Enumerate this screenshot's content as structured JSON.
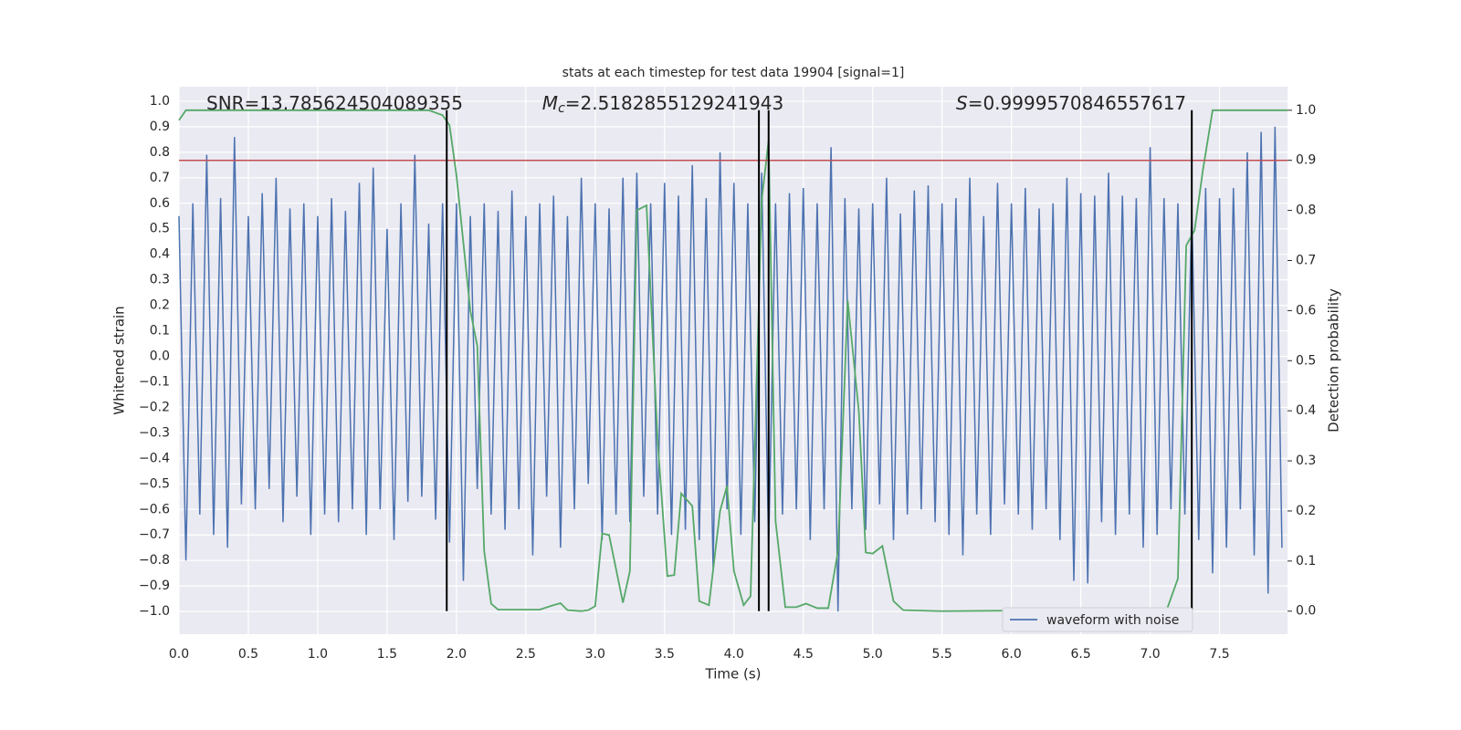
{
  "chart_data": {
    "type": "line",
    "title": "stats at each timestep for test data 19904 [signal=1]",
    "xlabel": "Time (s)",
    "ylabel": "Whitened strain",
    "y2label": "Detection probability",
    "annotations": [
      {
        "text": "SNR=13.785624504089355"
      },
      {
        "symbol": "M",
        "subscript": "c",
        "text": "=2.5182855129241943"
      },
      {
        "symbol": "S",
        "text": "=0.9999570846557617"
      }
    ],
    "xlim": [
      0,
      7.99
    ],
    "ylim": [
      -1.089,
      1.057
    ],
    "y2lim": [
      -0.046,
      1.047
    ],
    "grid": true,
    "legend": "lower right",
    "xticks": [
      {
        "value": 0,
        "label": "0.0"
      },
      {
        "value": 0.5,
        "label": "0.5"
      },
      {
        "value": 1,
        "label": "1.0"
      },
      {
        "value": 1.5,
        "label": "1.5"
      },
      {
        "value": 2,
        "label": "2.0"
      },
      {
        "value": 2.5,
        "label": "2.5"
      },
      {
        "value": 3,
        "label": "3.0"
      },
      {
        "value": 3.5,
        "label": "3.5"
      },
      {
        "value": 4,
        "label": "4.0"
      },
      {
        "value": 4.5,
        "label": "4.5"
      },
      {
        "value": 5,
        "label": "5.0"
      },
      {
        "value": 5.5,
        "label": "5.5"
      },
      {
        "value": 6,
        "label": "6.0"
      },
      {
        "value": 6.5,
        "label": "6.5"
      },
      {
        "value": 7,
        "label": "7.0"
      },
      {
        "value": 7.5,
        "label": "7.5"
      }
    ],
    "yticks": [
      {
        "value": -1,
        "label": "−1.0"
      },
      {
        "value": -0.9,
        "label": "−0.9"
      },
      {
        "value": -0.8,
        "label": "−0.8"
      },
      {
        "value": -0.7,
        "label": "−0.7"
      },
      {
        "value": -0.6,
        "label": "−0.6"
      },
      {
        "value": -0.5,
        "label": "−0.5"
      },
      {
        "value": -0.4,
        "label": "−0.4"
      },
      {
        "value": -0.3,
        "label": "−0.3"
      },
      {
        "value": -0.2,
        "label": "−0.2"
      },
      {
        "value": -0.1,
        "label": "−0.1"
      },
      {
        "value": 0,
        "label": "0.0"
      },
      {
        "value": 0.1,
        "label": "0.1"
      },
      {
        "value": 0.2,
        "label": "0.2"
      },
      {
        "value": 0.3,
        "label": "0.3"
      },
      {
        "value": 0.4,
        "label": "0.4"
      },
      {
        "value": 0.5,
        "label": "0.5"
      },
      {
        "value": 0.6,
        "label": "0.6"
      },
      {
        "value": 0.7,
        "label": "0.7"
      },
      {
        "value": 0.8,
        "label": "0.8"
      },
      {
        "value": 0.9,
        "label": "0.9"
      },
      {
        "value": 1,
        "label": "1.0"
      }
    ],
    "y2ticks": [
      {
        "value": 0,
        "label": "0.0"
      },
      {
        "value": 0.1,
        "label": "0.1"
      },
      {
        "value": 0.2,
        "label": "0.2"
      },
      {
        "value": 0.3,
        "label": "0.3"
      },
      {
        "value": 0.4,
        "label": "0.4"
      },
      {
        "value": 0.5,
        "label": "0.5"
      },
      {
        "value": 0.6,
        "label": "0.6"
      },
      {
        "value": 0.7,
        "label": "0.7"
      },
      {
        "value": 0.8,
        "label": "0.8"
      },
      {
        "value": 0.9,
        "label": "0.9"
      },
      {
        "value": 1,
        "label": "1.0"
      }
    ],
    "series": [
      {
        "name": "waveform with noise",
        "color": "#4c72b0",
        "x": [
          0,
          0.05,
          0.1,
          0.15,
          0.2,
          0.25,
          0.3,
          0.35,
          0.4,
          0.45,
          0.5,
          0.55,
          0.6,
          0.65,
          0.7,
          0.75,
          0.8,
          0.85,
          0.9,
          0.95,
          1,
          1.05,
          1.1,
          1.15,
          1.2,
          1.25,
          1.3,
          1.35,
          1.4,
          1.45,
          1.5,
          1.55,
          1.6,
          1.65,
          1.7,
          1.75,
          1.8,
          1.85,
          1.9,
          1.95,
          2,
          2.05,
          2.1,
          2.15,
          2.2,
          2.25,
          2.3,
          2.35,
          2.4,
          2.45,
          2.5,
          2.55,
          2.6,
          2.65,
          2.7,
          2.75,
          2.8,
          2.85,
          2.9,
          2.95,
          3,
          3.05,
          3.1,
          3.15,
          3.2,
          3.25,
          3.3,
          3.35,
          3.4,
          3.45,
          3.5,
          3.55,
          3.6,
          3.65,
          3.7,
          3.75,
          3.8,
          3.85,
          3.9,
          3.95,
          4,
          4.05,
          4.1,
          4.15,
          4.2,
          4.25,
          4.3,
          4.35,
          4.4,
          4.45,
          4.5,
          4.55,
          4.6,
          4.65,
          4.7,
          4.75,
          4.8,
          4.85,
          4.9,
          4.95,
          5,
          5.05,
          5.1,
          5.15,
          5.2,
          5.25,
          5.3,
          5.35,
          5.4,
          5.45,
          5.5,
          5.55,
          5.6,
          5.65,
          5.7,
          5.75,
          5.8,
          5.85,
          5.9,
          5.95,
          6,
          6.05,
          6.1,
          6.15,
          6.2,
          6.25,
          6.3,
          6.35,
          6.4,
          6.45,
          6.5,
          6.55,
          6.6,
          6.65,
          6.7,
          6.75,
          6.8,
          6.85,
          6.9,
          6.95,
          7,
          7.05,
          7.1,
          7.15,
          7.2,
          7.25,
          7.3,
          7.35,
          7.4,
          7.45,
          7.5,
          7.55,
          7.6,
          7.65,
          7.7,
          7.75,
          7.8,
          7.85,
          7.9,
          7.95
        ],
        "values": [
          0.55,
          -0.8,
          0.6,
          -0.62,
          0.79,
          -0.7,
          0.62,
          -0.75,
          0.86,
          -0.58,
          0.55,
          -0.6,
          0.64,
          -0.52,
          0.7,
          -0.65,
          0.58,
          -0.55,
          0.6,
          -0.7,
          0.55,
          -0.62,
          0.62,
          -0.65,
          0.57,
          -0.6,
          0.68,
          -0.7,
          0.74,
          -0.6,
          0.5,
          -0.72,
          0.6,
          -0.57,
          0.79,
          -0.55,
          0.52,
          -0.64,
          0.6,
          -0.73,
          0.6,
          -0.88,
          0.55,
          -0.52,
          0.6,
          -0.62,
          0.57,
          -0.68,
          0.65,
          -0.6,
          0.55,
          -0.78,
          0.6,
          -0.55,
          0.63,
          -0.75,
          0.55,
          -0.6,
          0.7,
          -0.5,
          0.6,
          -0.72,
          0.58,
          -0.62,
          0.7,
          -0.65,
          0.72,
          -0.55,
          0.6,
          -0.62,
          0.68,
          -0.7,
          0.63,
          -0.68,
          0.75,
          -0.72,
          0.62,
          -0.83,
          0.8,
          -0.6,
          0.68,
          -0.7,
          0.6,
          -0.65,
          0.72,
          -0.75,
          0.6,
          -0.62,
          0.64,
          -0.6,
          0.66,
          -0.72,
          0.6,
          -0.6,
          0.82,
          -1.0,
          0.62,
          -0.6,
          0.58,
          -0.68,
          0.6,
          -0.58,
          0.7,
          -0.72,
          0.56,
          -0.62,
          0.65,
          -0.6,
          0.67,
          -0.65,
          0.6,
          -0.7,
          0.62,
          -0.78,
          0.7,
          -0.62,
          0.55,
          -0.7,
          0.68,
          -0.58,
          0.6,
          -0.62,
          0.66,
          -0.68,
          0.58,
          -0.6,
          0.6,
          -0.72,
          0.7,
          -0.88,
          0.64,
          -0.89,
          0.63,
          -0.65,
          0.72,
          -0.7,
          0.63,
          -0.62,
          0.62,
          -0.75,
          0.82,
          -0.7,
          0.62,
          -0.6,
          0.6,
          -0.62,
          0.58,
          -0.72,
          0.66,
          -0.85,
          0.62,
          -0.75,
          0.66,
          -0.6,
          0.8,
          -0.78,
          0.88,
          -0.93,
          0.9,
          -0.75
        ]
      },
      {
        "color": "#55a868",
        "axis": "y2",
        "x": [
          0,
          0.05,
          1.8,
          1.9,
          1.95,
          2,
          2.1,
          2.15,
          2.2,
          2.25,
          2.3,
          2.45,
          2.6,
          2.7,
          2.75,
          2.8,
          2.9,
          2.95,
          3,
          3.05,
          3.1,
          3.2,
          3.25,
          3.3,
          3.37,
          3.45,
          3.52,
          3.57,
          3.62,
          3.7,
          3.75,
          3.82,
          3.9,
          3.95,
          4,
          4.07,
          4.12,
          4.2,
          4.25,
          4.3,
          4.37,
          4.45,
          4.52,
          4.6,
          4.68,
          4.75,
          4.82,
          4.9,
          4.95,
          5,
          5.07,
          5.15,
          5.22,
          5.5,
          6,
          6.5,
          6.6,
          6.8,
          7,
          7.05,
          7.12,
          7.2,
          7.26,
          7.32,
          7.38,
          7.45,
          7.99
        ],
        "values": [
          0.98,
          1.0,
          1.0,
          0.99,
          0.97,
          0.87,
          0.6,
          0.53,
          0.12,
          0.015,
          0.003,
          0.003,
          0.003,
          0.012,
          0.016,
          0.002,
          0.0,
          0.002,
          0.01,
          0.155,
          0.152,
          0.017,
          0.08,
          0.8,
          0.81,
          0.34,
          0.07,
          0.072,
          0.235,
          0.21,
          0.02,
          0.012,
          0.2,
          0.25,
          0.08,
          0.012,
          0.03,
          0.82,
          0.94,
          0.18,
          0.008,
          0.008,
          0.015,
          0.006,
          0.006,
          0.12,
          0.62,
          0.4,
          0.117,
          0.115,
          0.13,
          0.02,
          0.002,
          0.0,
          0.001,
          0.001,
          0.003,
          0.002,
          0.006,
          0.002,
          0.003,
          0.065,
          0.73,
          0.76,
          0.88,
          1.0,
          1.0
        ]
      }
    ],
    "threshold": {
      "value": 0.9,
      "axis": "y2",
      "color": "#c44e52"
    },
    "vlines": {
      "x": [
        1.93,
        4.18,
        4.25,
        7.3
      ],
      "span": [
        0,
        1
      ],
      "axis": "y2",
      "color": "#000000"
    }
  }
}
